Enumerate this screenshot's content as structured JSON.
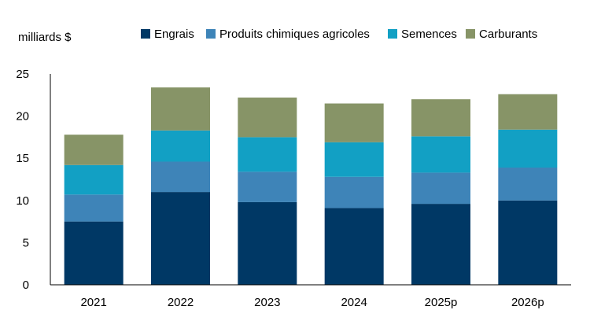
{
  "chart_data": {
    "type": "bar",
    "stacked": true,
    "ylabel": "milliards $",
    "xlabel": "",
    "ylim": [
      0,
      25
    ],
    "yticks": [
      0,
      5,
      10,
      15,
      20,
      25
    ],
    "grid": false,
    "legend_position": "top",
    "categories": [
      "2021",
      "2022",
      "2023",
      "2024",
      "2025p",
      "2026p"
    ],
    "series": [
      {
        "name": "Engrais",
        "color": "#003865",
        "values": [
          7.5,
          11.0,
          9.8,
          9.1,
          9.6,
          10.0
        ]
      },
      {
        "name": "Produits chimiques agricoles",
        "color": "#3e84b8",
        "values": [
          3.2,
          3.6,
          3.6,
          3.7,
          3.7,
          3.9
        ]
      },
      {
        "name": "Semences",
        "color": "#12a0c4",
        "values": [
          3.5,
          3.7,
          4.1,
          4.1,
          4.3,
          4.5
        ]
      },
      {
        "name": "Carburants",
        "color": "#879467",
        "values": [
          3.6,
          5.1,
          4.7,
          4.6,
          4.4,
          4.2
        ]
      }
    ]
  }
}
